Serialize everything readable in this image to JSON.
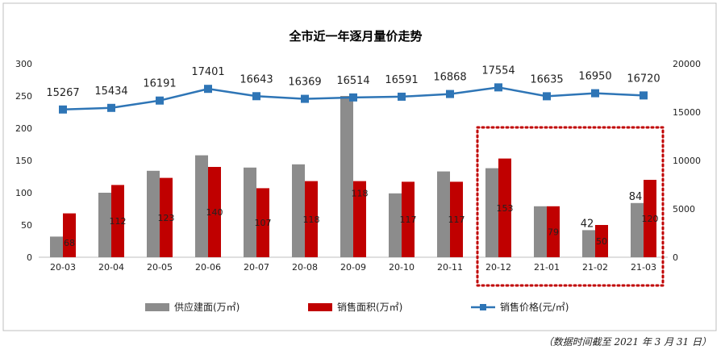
{
  "chart_data": {
    "type": "bar",
    "title": "全市近一年逐月量价走势",
    "categories": [
      "20-03",
      "20-04",
      "20-05",
      "20-06",
      "20-07",
      "20-08",
      "20-09",
      "20-10",
      "20-11",
      "20-12",
      "21-01",
      "21-02",
      "21-03"
    ],
    "series": [
      {
        "name": "供应建面(万㎡)",
        "type": "bar",
        "axis": "left",
        "color": "#8c8c8c",
        "values": [
          32,
          100,
          134,
          158,
          139,
          144,
          250,
          99,
          133,
          138,
          79,
          42,
          84
        ],
        "labels": [
          "",
          "",
          "",
          "",
          "",
          "",
          "",
          "",
          "",
          "",
          "",
          "42",
          "84"
        ]
      },
      {
        "name": "销售面积(万㎡)",
        "type": "bar",
        "axis": "left",
        "color": "#c00000",
        "values": [
          68,
          112,
          123,
          140,
          107,
          118,
          118,
          117,
          117,
          153,
          79,
          50,
          120
        ],
        "labels": [
          "68",
          "112",
          "123",
          "140",
          "107",
          "118",
          "118",
          "117",
          "117",
          "153",
          "79",
          "50",
          "120"
        ]
      },
      {
        "name": "销售价格(元/㎡)",
        "type": "line",
        "axis": "right",
        "color": "#2e75b6",
        "values": [
          15267,
          15434,
          16191,
          17401,
          16643,
          16369,
          16514,
          16591,
          16868,
          17554,
          16635,
          16950,
          16720
        ],
        "labels": [
          "15267",
          "15434",
          "16191",
          "17401",
          "16643",
          "16369",
          "16514",
          "16591",
          "16868",
          "17554",
          "16635",
          "16950",
          "16720"
        ]
      }
    ],
    "y_left": {
      "range": [
        0,
        300
      ],
      "ticks": [
        "0",
        "50",
        "100",
        "150",
        "200",
        "250",
        "300"
      ]
    },
    "y_right": {
      "range": [
        0,
        20000
      ],
      "ticks": [
        "0",
        "5000",
        "10000",
        "15000",
        "20000"
      ]
    },
    "grid": false,
    "legend_position": "bottom",
    "highlight": {
      "categories": [
        "20-12",
        "21-01",
        "21-02",
        "21-03"
      ],
      "style": "dotted-red-box"
    },
    "footnote": "（数据时间截至 2021 年 3 月 31 日）"
  }
}
